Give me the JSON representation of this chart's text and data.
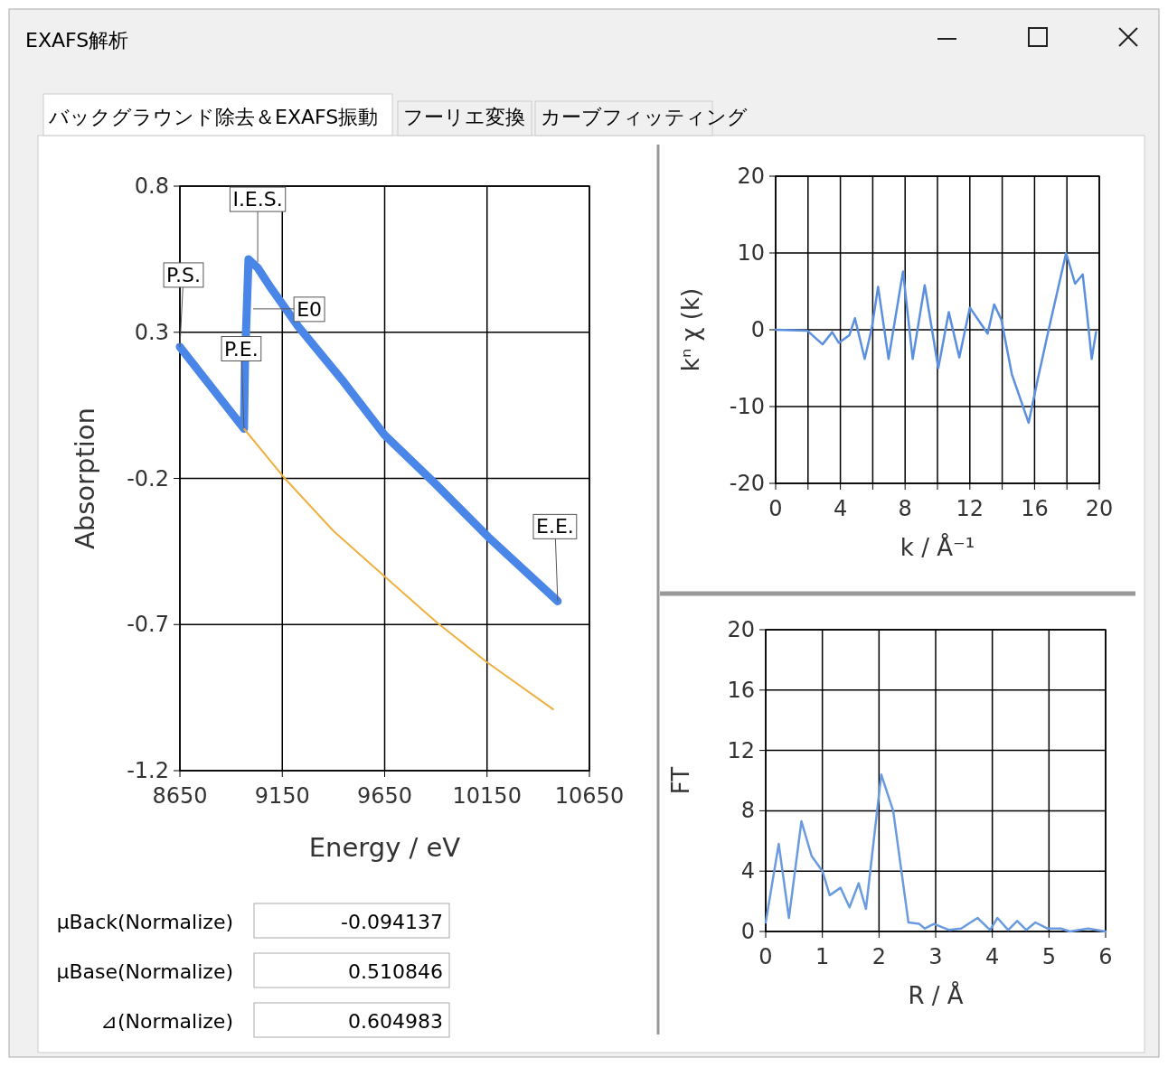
{
  "chart_data": [
    {
      "type": "other",
      "annotations": [
        "EXAFS解析",
        "バックグラウンド除去＆EXAFS振動",
        "フーリエ変換",
        "カーブフィッティング"
      ]
    },
    {
      "type": "line",
      "xlabel": "Energy / eV",
      "ylabel": "Absorption",
      "xlim": [
        8650,
        10650
      ],
      "xticks": [
        8650,
        9150,
        9650,
        10150,
        10650
      ],
      "ylim": [
        -1.2,
        0.8
      ],
      "yticks": [
        0.8,
        0.3,
        -0.2,
        -0.7,
        -1.2
      ],
      "grid": true,
      "series": [
        {
          "color": "#4a86e8",
          "x": [
            8650,
            8963,
            8968,
            8985,
            9030,
            9096,
            9228,
            9450,
            9648,
            9900,
            10155,
            10495
          ],
          "values": [
            0.25,
            -0.03,
            0.2,
            0.55,
            0.52,
            0.45,
            0.32,
            0.13,
            -0.05,
            -0.22,
            -0.4,
            -0.62
          ]
        },
        {
          "color": "#f0b040",
          "x": [
            8963,
            9162,
            9400,
            9657,
            9900,
            10151,
            10473
          ],
          "values": [
            -0.03,
            -0.2,
            -0.38,
            -0.54,
            -0.69,
            -0.83,
            -0.99
          ]
        }
      ],
      "annotations": [
        {
          "text": "P.S.",
          "x": 8650,
          "y": 0.25
        },
        {
          "text": "P.E.",
          "x": 8963,
          "y": -0.03
        },
        {
          "text": "I.E.S.",
          "x": 9030,
          "y": 0.54
        },
        {
          "text": "E0",
          "x": 9008,
          "y": 0.38
        },
        {
          "text": "E.E.",
          "x": 10495,
          "y": -0.62
        }
      ]
    },
    {
      "type": "line",
      "xlabel": "k / Å⁻¹",
      "ylabel": "kⁿ χ (k)",
      "xlim": [
        0,
        20
      ],
      "xticks": [
        0,
        {
          "value": 2,
          "label": null
        },
        4,
        {
          "value": 6,
          "label": null
        },
        8,
        {
          "value": 10,
          "label": null
        },
        12,
        {
          "value": 14,
          "label": null
        },
        16,
        {
          "value": 18,
          "label": null
        },
        20
      ],
      "ylim": [
        -20,
        20
      ],
      "yticks": [
        -20,
        -10,
        0,
        10,
        20
      ],
      "grid": true,
      "series": [
        {
          "color": "#5b8fe0",
          "x": [
            0,
            1.95,
            2.9,
            3.5,
            3.9,
            4.56,
            4.9,
            5.5,
            5.95,
            6.33,
            6.98,
            7.87,
            8.47,
            9.21,
            10.05,
            10.7,
            11.35,
            12.0,
            13.1,
            13.5,
            13.95,
            14.6,
            15.63,
            16.2,
            16.84,
            17.95,
            18.5,
            18.98,
            19.26,
            19.53,
            19.8
          ],
          "values": [
            0,
            -0.1,
            -1.9,
            -0.3,
            -1.7,
            -0.7,
            1.5,
            -3.8,
            0.3,
            5.6,
            -3.8,
            7.6,
            -3.8,
            5.8,
            -5.0,
            2.3,
            -3.6,
            2.9,
            -0.5,
            3.3,
            1.3,
            -5.8,
            -12.1,
            -6.4,
            -0.3,
            10.0,
            6.0,
            7.2,
            1.7,
            -3.8,
            -0.3
          ]
        }
      ]
    },
    {
      "type": "line",
      "xlabel": "R / Å",
      "ylabel": "FT",
      "xlim": [
        0,
        6
      ],
      "xticks": [
        0,
        1,
        2,
        3,
        4,
        5,
        6
      ],
      "ylim": [
        0,
        20
      ],
      "yticks": [
        0,
        4,
        8,
        12,
        16,
        20
      ],
      "grid": true,
      "series": [
        {
          "color": "#6a9be0",
          "x": [
            0,
            0.23,
            0.41,
            0.63,
            0.81,
            1.0,
            1.13,
            1.32,
            1.48,
            1.64,
            1.77,
            2.04,
            2.25,
            2.52,
            2.71,
            2.81,
            2.97,
            3.24,
            3.45,
            3.74,
            3.96,
            4.09,
            4.28,
            4.44,
            4.6,
            4.76,
            4.97,
            5.21,
            5.37,
            5.69,
            6
          ],
          "values": [
            0.6,
            5.8,
            0.9,
            7.3,
            5.0,
            4.0,
            2.4,
            2.9,
            1.6,
            3.2,
            1.5,
            10.4,
            8.0,
            0.6,
            0.5,
            0.2,
            0.5,
            0.1,
            0.2,
            0.9,
            0.1,
            0.9,
            0.1,
            0.7,
            0.1,
            0.6,
            0.2,
            0.2,
            0,
            0.2,
            0
          ]
        }
      ]
    },
    {
      "type": "other",
      "annotations": [
        "μBack(Normalize)",
        "-0.094137",
        "μBase(Normalize)",
        "0.510846",
        "⊿(Normalize)",
        "0.604983"
      ]
    }
  ]
}
